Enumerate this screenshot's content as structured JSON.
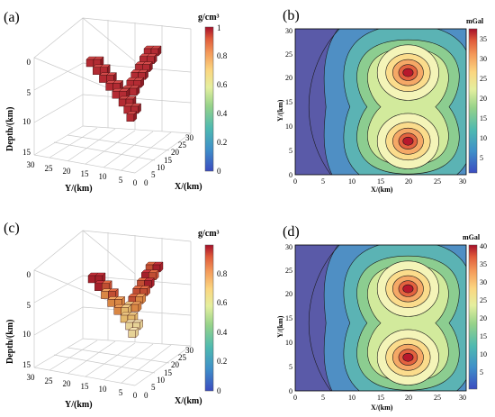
{
  "panels": {
    "a": {
      "tag": "(a)",
      "unit": "g/cm³"
    },
    "b": {
      "tag": "(b)",
      "unit": "mGal"
    },
    "c": {
      "tag": "(c)",
      "unit": "g/cm³"
    },
    "d": {
      "tag": "(d)",
      "unit": "mGal"
    }
  },
  "colors": {
    "parula_like": [
      "#3b4cc0",
      "#4a90c9",
      "#5fb8b8",
      "#8fd18f",
      "#d7ec9a",
      "#fbf3b0",
      "#fcd78a",
      "#f4a05e",
      "#e0603f",
      "#b2182b"
    ]
  },
  "chart_data": [
    {
      "id": "a",
      "type": "voxel3d",
      "zlabel": "Depth/(km)",
      "ylabel": "Y/(km)",
      "xlabel": "X/(km)",
      "z_ticks": [
        "0",
        "5",
        "10",
        "15"
      ],
      "y_ticks": [
        "30",
        "25",
        "20",
        "15",
        "10",
        "5",
        "0"
      ],
      "x_ticks": [
        "0",
        "5",
        "10",
        "15",
        "20",
        "25",
        "30"
      ],
      "colorbar": {
        "label": "g/cm³",
        "ticks": [
          "0",
          "0.2",
          "0.4",
          "0.6",
          "0.8",
          "1"
        ],
        "range": [
          0,
          1
        ]
      },
      "shape": "V",
      "density": 1.0
    },
    {
      "id": "b",
      "type": "contour",
      "xlabel": "X/(km)",
      "ylabel": "Y/(km)",
      "x_ticks": [
        "0",
        "5",
        "10",
        "15",
        "20",
        "25",
        "30"
      ],
      "y_ticks": [
        "0",
        "5",
        "10",
        "15",
        "20",
        "25",
        "30"
      ],
      "colorbar": {
        "label": "mGal",
        "ticks": [
          "5",
          "10",
          "15",
          "20",
          "25",
          "30",
          "35"
        ],
        "range": [
          2,
          38
        ]
      },
      "peaks": [
        {
          "x": 20,
          "y": 21
        },
        {
          "x": 20,
          "y": 7
        }
      ]
    },
    {
      "id": "c",
      "type": "voxel3d",
      "zlabel": "Depth/(km)",
      "ylabel": "Y/(km)",
      "xlabel": "X/(km)",
      "z_ticks": [
        "0",
        "5",
        "10",
        "15"
      ],
      "y_ticks": [
        "30",
        "25",
        "20",
        "15",
        "10",
        "5",
        "0"
      ],
      "x_ticks": [
        "0",
        "5",
        "10",
        "15",
        "20",
        "25",
        "30"
      ],
      "colorbar": {
        "label": "g/cm³",
        "ticks": [
          "0",
          "0.2",
          "0.4",
          "0.6",
          "0.8"
        ],
        "range": [
          0,
          1
        ]
      },
      "shape": "V",
      "density": "0.4-1.0"
    },
    {
      "id": "d",
      "type": "contour",
      "xlabel": "X/(km)",
      "ylabel": "Y/(km)",
      "x_ticks": [
        "0",
        "5",
        "10",
        "15",
        "20",
        "25",
        "30"
      ],
      "y_ticks": [
        "0",
        "5",
        "10",
        "15",
        "20",
        "25",
        "30"
      ],
      "colorbar": {
        "label": "mGal",
        "ticks": [
          "5",
          "10",
          "15",
          "20",
          "25",
          "30",
          "35",
          "40"
        ],
        "range": [
          2,
          41
        ]
      },
      "peaks": [
        {
          "x": 20,
          "y": 21
        },
        {
          "x": 20,
          "y": 7
        }
      ]
    }
  ]
}
